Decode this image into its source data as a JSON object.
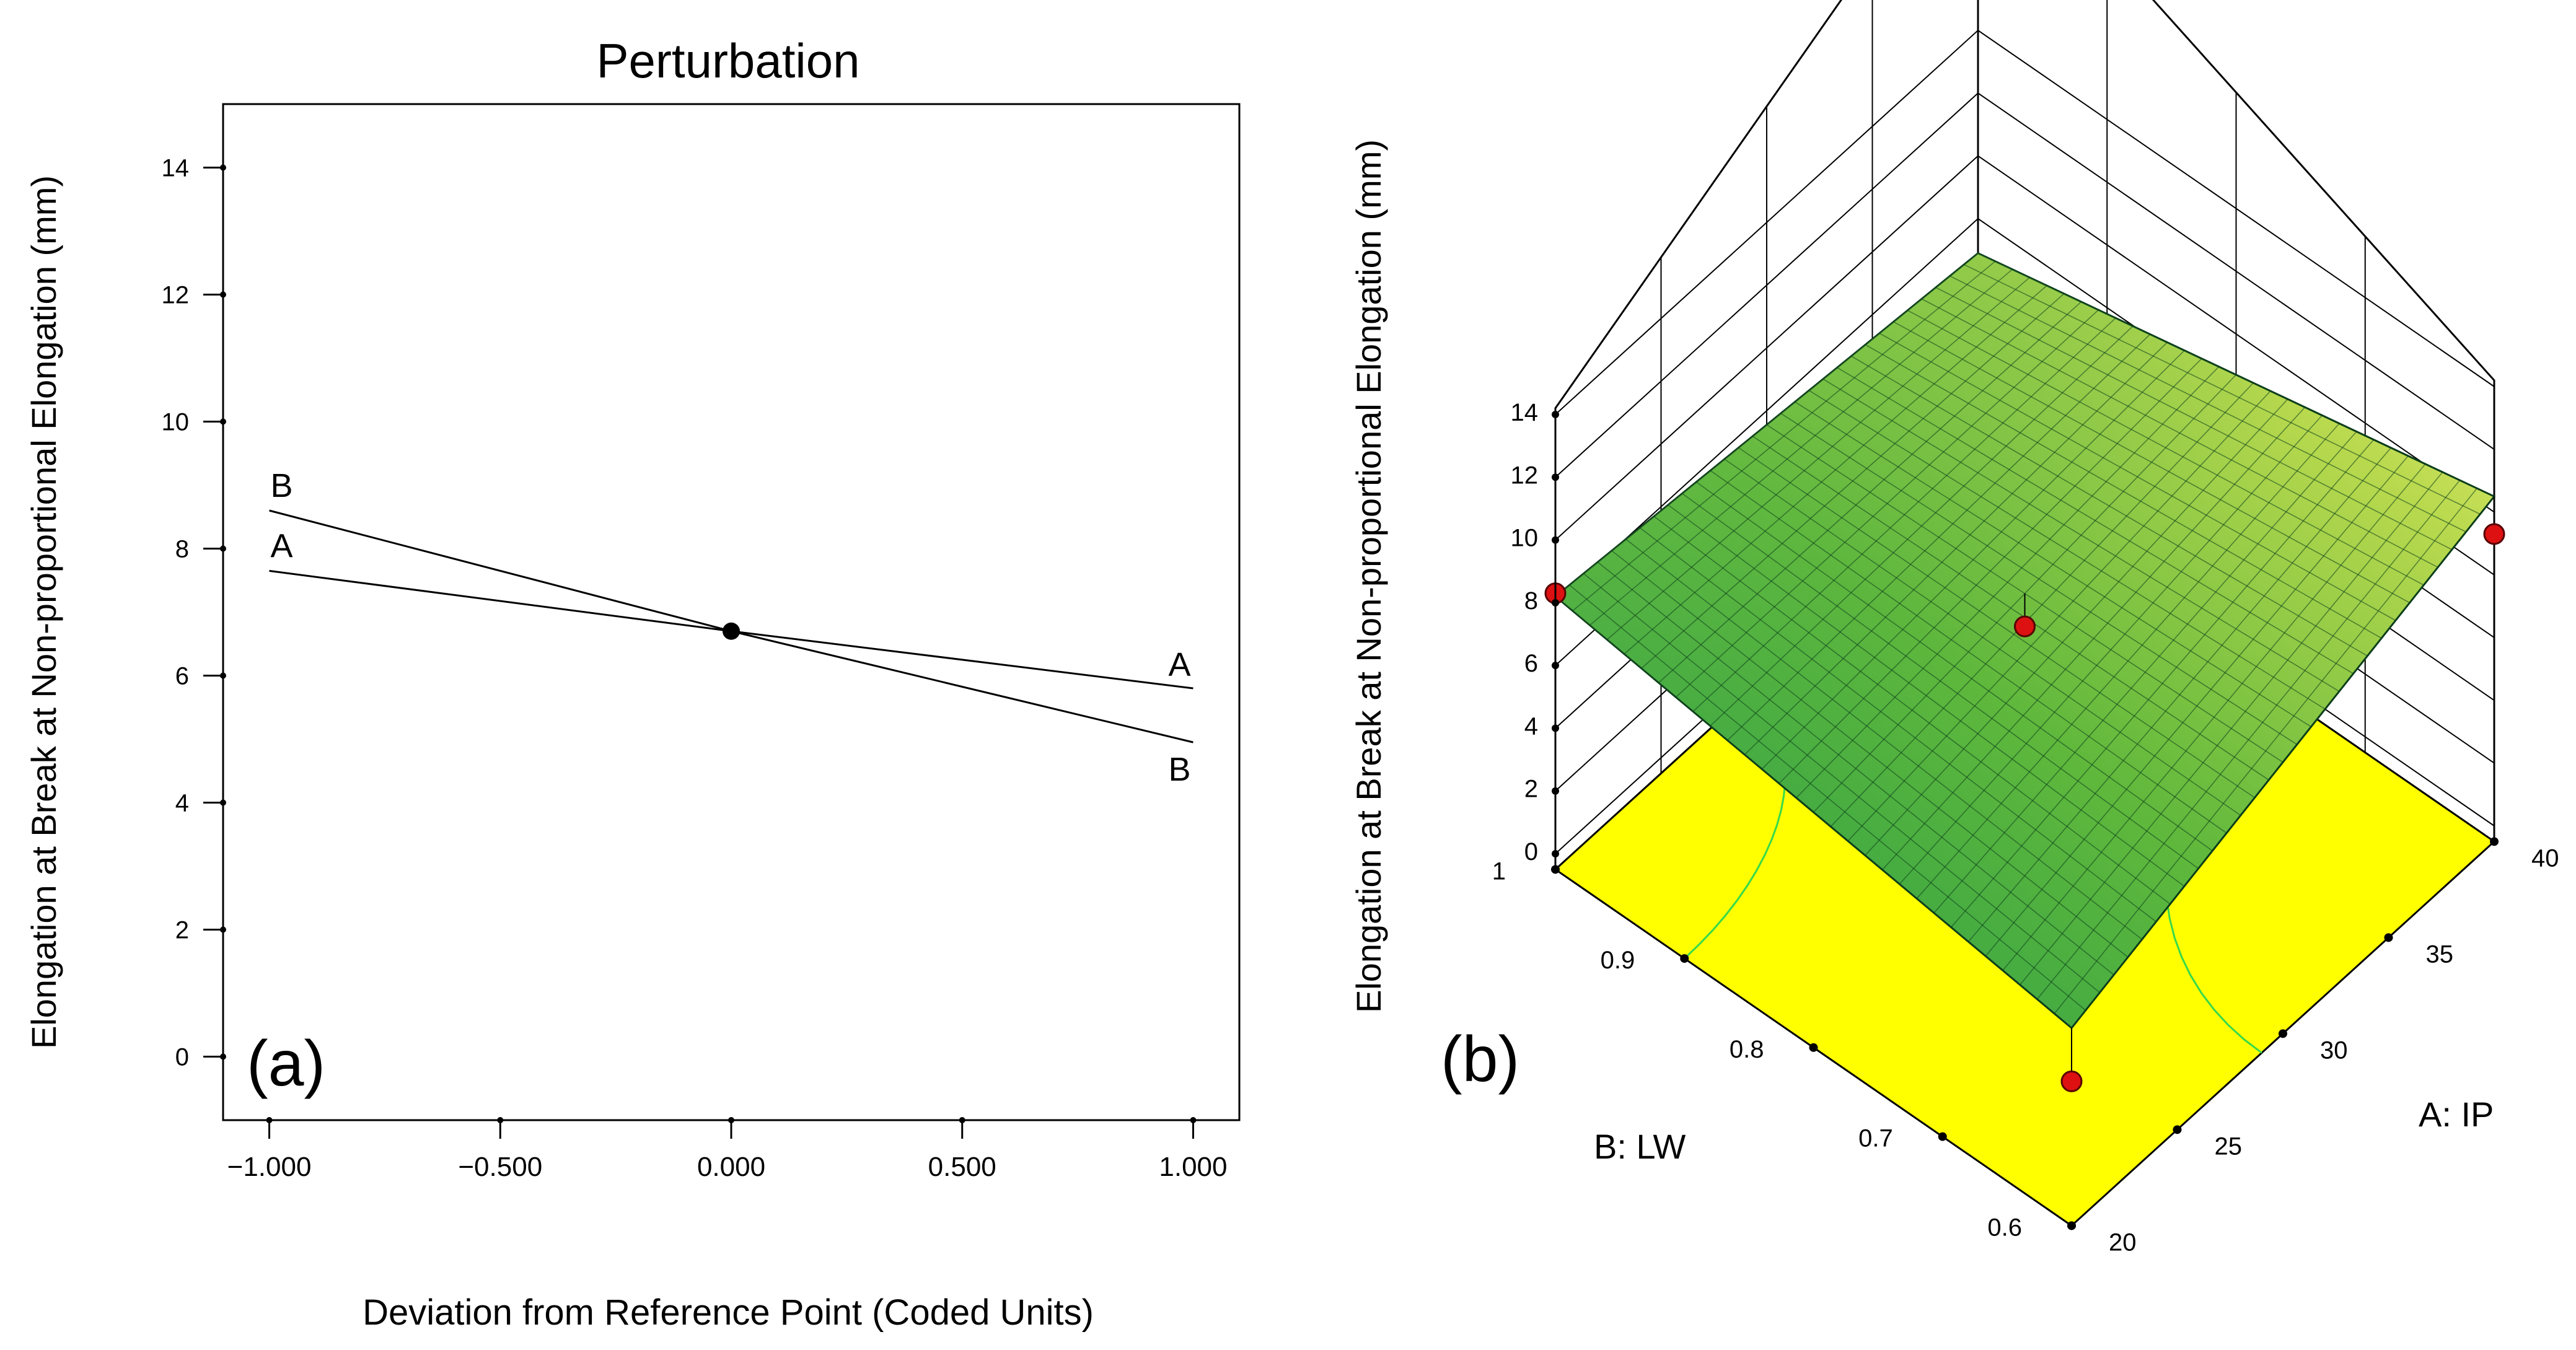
{
  "chart_data": [
    {
      "type": "line",
      "panel_label": "(a)",
      "title": "Perturbation",
      "xlabel": "Deviation from Reference Point (Coded Units)",
      "ylabel": "Elongation at Break at Non-proportional Elongation  (mm)",
      "xlim": [
        -1.1,
        1.1
      ],
      "ylim": [
        -1,
        15
      ],
      "x_ticks": [
        -1,
        -0.5,
        0,
        0.5,
        1
      ],
      "x_tick_labels": [
        "−1.000",
        "−0.500",
        "0.000",
        "0.500",
        "1.000"
      ],
      "y_ticks": [
        0,
        2,
        4,
        6,
        8,
        10,
        12,
        14
      ],
      "y_tick_labels": [
        "0",
        "2",
        "4",
        "6",
        "8",
        "10",
        "12",
        "14"
      ],
      "reference_point": {
        "x": 0,
        "y": 6.7
      },
      "series": [
        {
          "name": "A",
          "x": [
            -1,
            0,
            1
          ],
          "values": [
            7.65,
            6.7,
            5.8
          ]
        },
        {
          "name": "B",
          "x": [
            -1,
            0,
            1
          ],
          "values": [
            8.6,
            6.7,
            4.95
          ]
        }
      ]
    },
    {
      "type": "surface3d",
      "panel_label": "(b)",
      "zlabel": "Elongation at Break at Non-proportional Elongation  (mm)",
      "xlabel": "A: IP",
      "ylabel": "B: LW",
      "x_ticks": [
        20,
        25,
        30,
        35,
        40
      ],
      "x_tick_labels": [
        "20",
        "25",
        "30",
        "35",
        "40"
      ],
      "y_ticks": [
        0.6,
        0.7,
        0.8,
        0.9,
        1
      ],
      "y_tick_labels": [
        "0.6",
        "0.7",
        "0.8",
        "0.9",
        "1"
      ],
      "z_ticks": [
        0,
        2,
        4,
        6,
        8,
        10,
        12,
        14
      ],
      "z_tick_labels": [
        "0",
        "2",
        "4",
        "6",
        "8",
        "10",
        "12",
        "14"
      ],
      "xlim": [
        20,
        40
      ],
      "ylim": [
        0.6,
        1
      ],
      "zlim": [
        0,
        14
      ],
      "surface_corners": [
        {
          "A": 20,
          "B": 0.6,
          "z": 5.8
        },
        {
          "A": 40,
          "B": 0.6,
          "z": 10.5
        },
        {
          "A": 20,
          "B": 1,
          "z": 8.2
        },
        {
          "A": 40,
          "B": 1,
          "z": 6.9
        }
      ],
      "design_points": [
        {
          "A": 20,
          "B": 1,
          "z": 8.3
        },
        {
          "A": 30,
          "B": 0.8,
          "z": 6.8
        },
        {
          "A": 40,
          "B": 0.6,
          "z": 9.3
        },
        {
          "A": 20,
          "B": 0.6,
          "z": 4.1
        }
      ],
      "colors": {
        "floor": "#ffff00",
        "surface_low": "#2aa84a",
        "surface_high": "#f0f26a",
        "point": "#dd1111"
      }
    }
  ]
}
